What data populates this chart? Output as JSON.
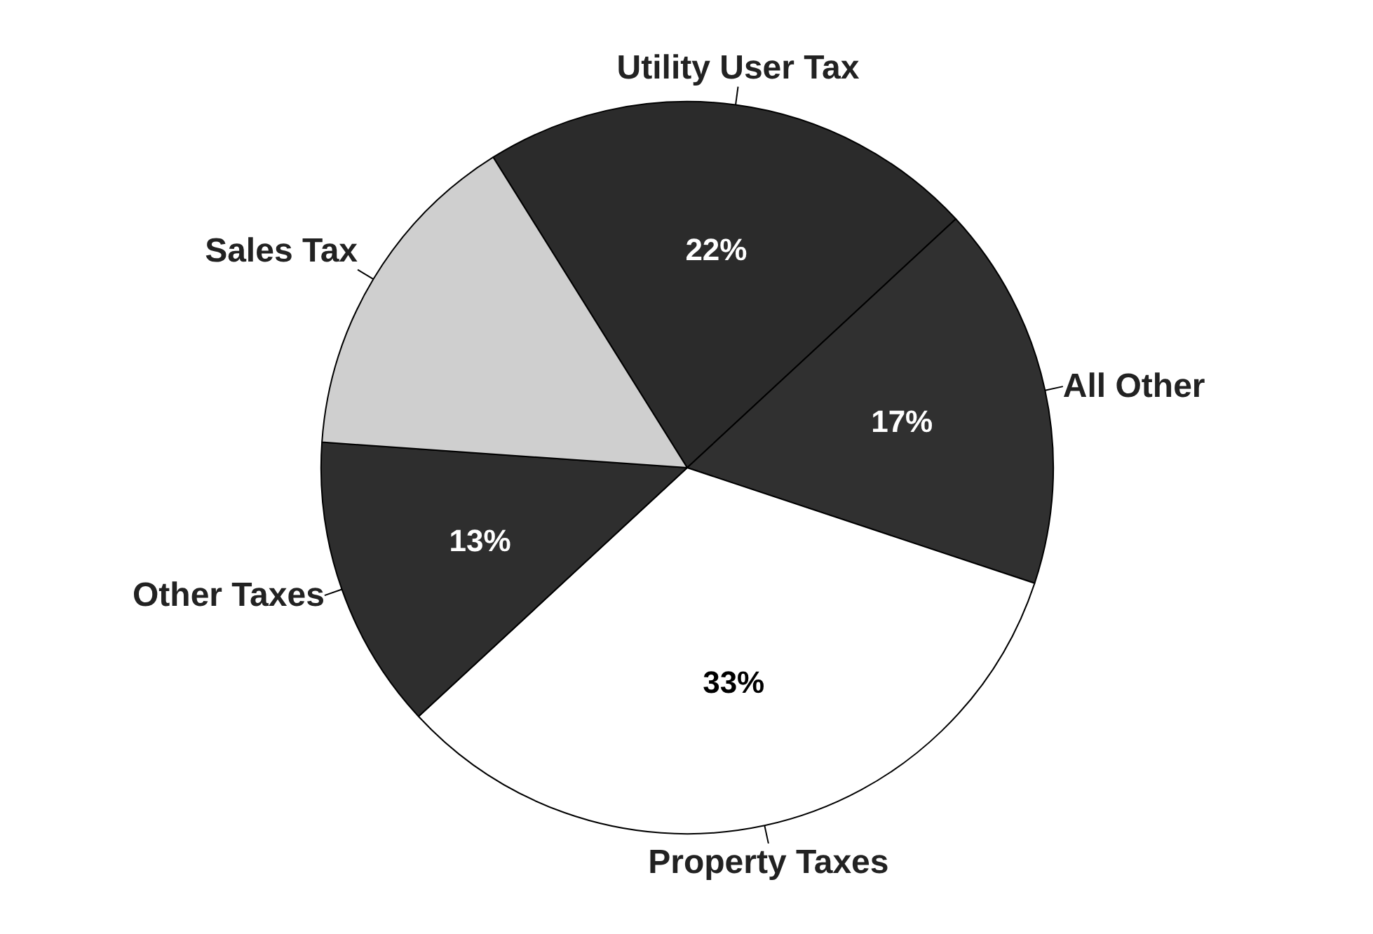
{
  "chart_data": {
    "type": "pie",
    "categories": [
      "Utility User Tax",
      "All Other",
      "Property Taxes",
      "Other Taxes",
      "Sales Tax"
    ],
    "values": [
      22,
      17,
      33,
      13,
      15
    ],
    "colors": [
      "#2b2b2b",
      "#303030",
      "#ffffff",
      "#2e2e2e",
      "#cfcfcf"
    ],
    "value_labels": [
      "22%",
      "17%",
      "33%",
      "13%",
      null
    ]
  }
}
